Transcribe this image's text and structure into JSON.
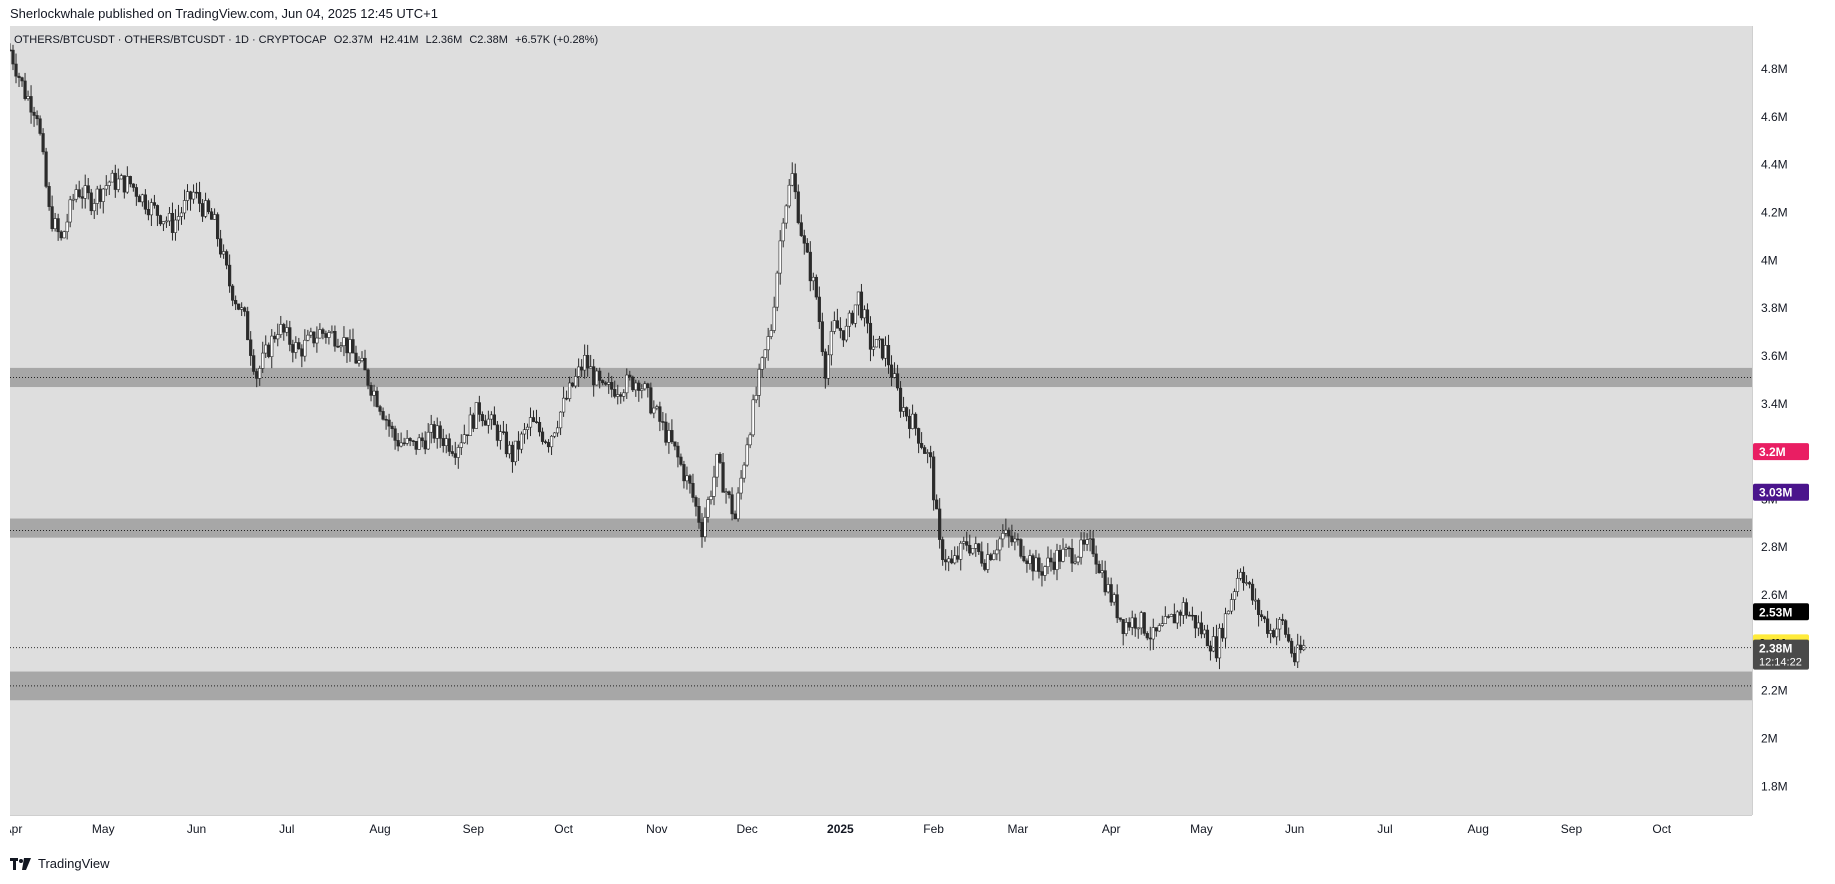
{
  "header": {
    "published": "Sherlockwhale published on TradingView.com, Jun 04, 2025 12:45 UTC+1"
  },
  "legend": {
    "symbol": "OTHERS/BTCUSDT · OTHERS/BTCUSDT · 1D · CRYPTOCAP",
    "open": "O2.37M",
    "high": "H2.41M",
    "low": "L2.36M",
    "close": "C2.38M",
    "change": "+6.57K (+0.28%)"
  },
  "footer": {
    "brand": "TradingView",
    "logo_icon": "tradingview-logo-icon"
  },
  "colors": {
    "background": "#dedede",
    "candle": "#2b2b2b",
    "zone": "#9e9e9e",
    "badge_red": "#e91e63",
    "badge_purple": "#4a148c",
    "badge_black": "#000000",
    "badge_yellow": "#ffeb3b",
    "badge_gray": "#4a4a4a"
  },
  "chart_data": {
    "type": "candlestick",
    "title": "",
    "ylim": [
      1.68,
      4.98
    ],
    "y_ticks": [
      {
        "v": 4.8,
        "label": "4.8M"
      },
      {
        "v": 4.6,
        "label": "4.6M"
      },
      {
        "v": 4.4,
        "label": "4.4M"
      },
      {
        "v": 4.2,
        "label": "4.2M"
      },
      {
        "v": 4.0,
        "label": "4M"
      },
      {
        "v": 3.8,
        "label": "3.8M"
      },
      {
        "v": 3.6,
        "label": "3.6M"
      },
      {
        "v": 3.4,
        "label": "3.4M"
      },
      {
        "v": 3.0,
        "label": "3M"
      },
      {
        "v": 2.8,
        "label": "2.8M"
      },
      {
        "v": 2.6,
        "label": "2.6M"
      },
      {
        "v": 2.2,
        "label": "2.2M"
      },
      {
        "v": 2.0,
        "label": "2M"
      },
      {
        "v": 1.8,
        "label": "1.8M"
      }
    ],
    "x_ticks": [
      {
        "date": "2024-04-01",
        "label": "Apr"
      },
      {
        "date": "2024-05-01",
        "label": "May"
      },
      {
        "date": "2024-06-01",
        "label": "Jun"
      },
      {
        "date": "2024-07-01",
        "label": "Jul"
      },
      {
        "date": "2024-08-01",
        "label": "Aug"
      },
      {
        "date": "2024-09-01",
        "label": "Sep"
      },
      {
        "date": "2024-10-01",
        "label": "Oct"
      },
      {
        "date": "2024-11-01",
        "label": "Nov"
      },
      {
        "date": "2024-12-01",
        "label": "Dec"
      },
      {
        "date": "2025-01-01",
        "label": "2025",
        "bold": true
      },
      {
        "date": "2025-02-01",
        "label": "Feb"
      },
      {
        "date": "2025-03-01",
        "label": "Mar"
      },
      {
        "date": "2025-04-01",
        "label": "Apr"
      },
      {
        "date": "2025-05-01",
        "label": "May"
      },
      {
        "date": "2025-06-01",
        "label": "Jun"
      },
      {
        "date": "2025-07-01",
        "label": "Jul"
      },
      {
        "date": "2025-08-01",
        "label": "Aug"
      },
      {
        "date": "2025-09-01",
        "label": "Sep"
      },
      {
        "date": "2025-10-01",
        "label": "Oct"
      }
    ],
    "zones": [
      {
        "from": 3.47,
        "to": 3.55,
        "mid": 3.51
      },
      {
        "from": 2.84,
        "to": 2.92,
        "mid": 2.87
      },
      {
        "from": 2.16,
        "to": 2.28,
        "mid": 2.22
      }
    ],
    "price_badges": [
      {
        "v": 3.2,
        "label": "3.2M",
        "color": "#e91e63",
        "text": "#ffffff"
      },
      {
        "v": 3.03,
        "label": "3.03M",
        "color": "#4a148c",
        "text": "#ffffff"
      },
      {
        "v": 2.53,
        "label": "2.53M",
        "color": "#000000",
        "text": "#ffffff"
      },
      {
        "v": 2.4,
        "label": "2.4M",
        "color": "#ffeb3b",
        "text": "#000000"
      },
      {
        "v": 2.38,
        "label": "2.38M",
        "sub": "12:14:22",
        "color": "#4a4a4a",
        "text": "#ffffff"
      }
    ],
    "last_price": 2.38,
    "closes": [
      [
        "2024-03-31",
        4.88
      ],
      [
        "2024-04-05",
        4.7
      ],
      [
        "2024-04-09",
        4.62
      ],
      [
        "2024-04-13",
        4.2
      ],
      [
        "2024-04-17",
        4.08
      ],
      [
        "2024-04-22",
        4.3
      ],
      [
        "2024-04-27",
        4.25
      ],
      [
        "2024-05-03",
        4.33
      ],
      [
        "2024-05-10",
        4.32
      ],
      [
        "2024-05-17",
        4.22
      ],
      [
        "2024-05-24",
        4.15
      ],
      [
        "2024-05-31",
        4.28
      ],
      [
        "2024-06-07",
        4.15
      ],
      [
        "2024-06-12",
        3.9
      ],
      [
        "2024-06-17",
        3.75
      ],
      [
        "2024-06-21",
        3.52
      ],
      [
        "2024-06-28",
        3.72
      ],
      [
        "2024-07-05",
        3.62
      ],
      [
        "2024-07-12",
        3.7
      ],
      [
        "2024-07-19",
        3.68
      ],
      [
        "2024-07-26",
        3.55
      ],
      [
        "2024-08-01",
        3.4
      ],
      [
        "2024-08-06",
        3.25
      ],
      [
        "2024-08-12",
        3.22
      ],
      [
        "2024-08-19",
        3.28
      ],
      [
        "2024-08-26",
        3.22
      ],
      [
        "2024-09-03",
        3.38
      ],
      [
        "2024-09-09",
        3.28
      ],
      [
        "2024-09-14",
        3.18
      ],
      [
        "2024-09-20",
        3.32
      ],
      [
        "2024-09-26",
        3.25
      ],
      [
        "2024-10-03",
        3.45
      ],
      [
        "2024-10-08",
        3.58
      ],
      [
        "2024-10-14",
        3.45
      ],
      [
        "2024-10-21",
        3.48
      ],
      [
        "2024-10-26",
        3.5
      ],
      [
        "2024-11-01",
        3.35
      ],
      [
        "2024-11-07",
        3.2
      ],
      [
        "2024-11-12",
        3.05
      ],
      [
        "2024-11-16",
        2.88
      ],
      [
        "2024-11-21",
        3.15
      ],
      [
        "2024-11-27",
        2.92
      ],
      [
        "2024-12-01",
        3.25
      ],
      [
        "2024-12-05",
        3.5
      ],
      [
        "2024-12-09",
        3.72
      ],
      [
        "2024-12-13",
        4.2
      ],
      [
        "2024-12-16",
        4.35
      ],
      [
        "2024-12-20",
        4.05
      ],
      [
        "2024-12-24",
        3.85
      ],
      [
        "2024-12-27",
        3.55
      ],
      [
        "2024-12-30",
        3.72
      ],
      [
        "2025-01-03",
        3.7
      ],
      [
        "2025-01-07",
        3.85
      ],
      [
        "2025-01-11",
        3.65
      ],
      [
        "2025-01-16",
        3.62
      ],
      [
        "2025-01-21",
        3.4
      ],
      [
        "2025-01-26",
        3.3
      ],
      [
        "2025-01-31",
        3.15
      ],
      [
        "2025-02-03",
        2.8
      ],
      [
        "2025-02-07",
        2.72
      ],
      [
        "2025-02-12",
        2.82
      ],
      [
        "2025-02-18",
        2.75
      ],
      [
        "2025-02-24",
        2.85
      ],
      [
        "2025-03-02",
        2.8
      ],
      [
        "2025-03-08",
        2.7
      ],
      [
        "2025-03-14",
        2.76
      ],
      [
        "2025-03-20",
        2.78
      ],
      [
        "2025-03-26",
        2.8
      ],
      [
        "2025-03-31",
        2.62
      ],
      [
        "2025-04-05",
        2.48
      ],
      [
        "2025-04-10",
        2.5
      ],
      [
        "2025-04-15",
        2.42
      ],
      [
        "2025-04-20",
        2.48
      ],
      [
        "2025-04-25",
        2.55
      ],
      [
        "2025-05-01",
        2.45
      ],
      [
        "2025-05-06",
        2.38
      ],
      [
        "2025-05-10",
        2.55
      ],
      [
        "2025-05-14",
        2.72
      ],
      [
        "2025-05-19",
        2.55
      ],
      [
        "2025-05-24",
        2.45
      ],
      [
        "2025-05-28",
        2.48
      ],
      [
        "2025-06-01",
        2.33
      ],
      [
        "2025-06-04",
        2.38
      ]
    ]
  }
}
